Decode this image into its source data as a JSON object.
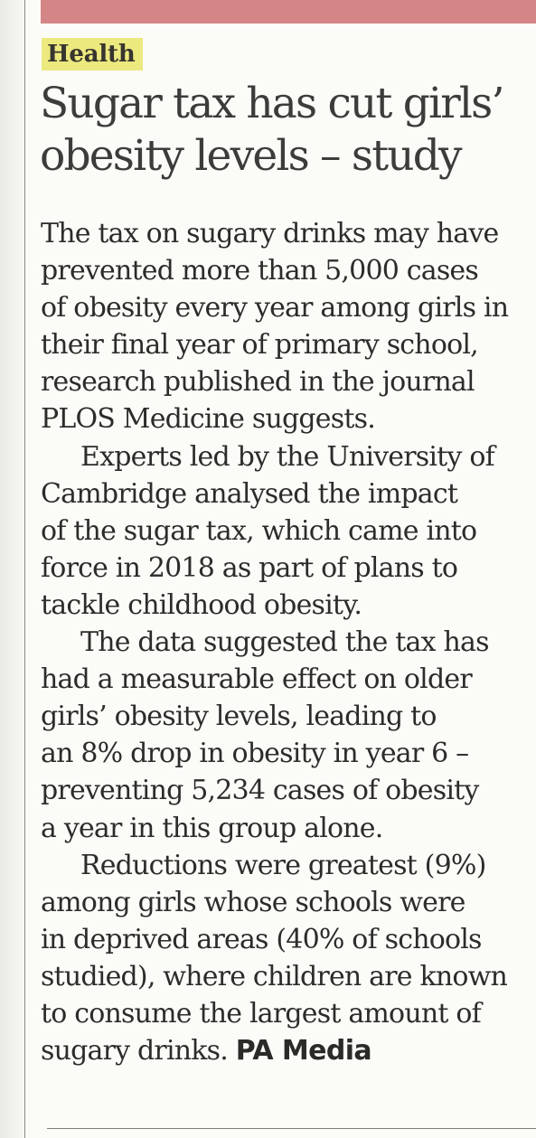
{
  "article": {
    "section": "Health",
    "headline": [
      "Sugar tax has cut girls’",
      "obesity levels – study"
    ],
    "paragraphs": [
      [
        "The tax on sugary drinks may have",
        "prevented more than 5,000 cases",
        "of obesity every year among girls in",
        "their final year of primary school,",
        "research published in the journal",
        "PLOS Medicine suggests."
      ],
      [
        "Experts led by the University of",
        "Cambridge analysed the impact",
        "of the sugar tax, which came into",
        "force in 2018 as part of plans to",
        "tackle childhood obesity."
      ],
      [
        "The data suggested the tax has",
        "had a measurable effect on older",
        "girls’ obesity levels, leading to",
        "an 8% drop in obesity in year 6 –",
        "preventing 5,234 cases of obesity",
        "a year in this group alone."
      ],
      [
        "Reductions were greatest (9%)",
        "among girls whose schools were",
        "in deprived areas (40% of schools",
        "studied), where children are known",
        "to consume the largest amount of",
        "sugary drinks."
      ]
    ],
    "credit": "PA Media",
    "colors": {
      "tag_highlight": "#ece97f",
      "top_band": "#d38685",
      "paper": "#fbfbf7",
      "ink": "#2c2c2a"
    }
  }
}
